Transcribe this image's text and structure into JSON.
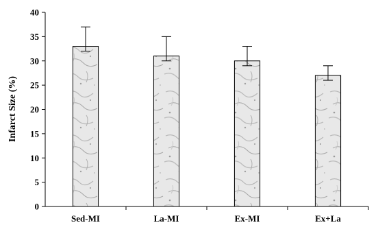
{
  "chart_data": {
    "type": "bar",
    "categories": [
      "Sed-MI",
      "La-MI",
      "Ex-MI",
      "Ex+La"
    ],
    "series": [
      {
        "values": [
          33,
          31,
          30,
          27
        ],
        "error_upper": [
          4,
          4,
          3,
          2
        ],
        "error_lower": [
          1,
          1,
          1,
          1
        ]
      }
    ],
    "title": "",
    "xlabel": "",
    "ylabel": "Infarct  Size (%)",
    "ylim": [
      0,
      40
    ],
    "yticks": [
      0,
      5,
      10,
      15,
      20,
      25,
      30,
      35,
      40
    ],
    "grid": false,
    "legend": "none",
    "bar_fill": "marble-texture",
    "colors": {
      "bar_base": "#e6e6e6",
      "stroke": "#000000"
    }
  }
}
